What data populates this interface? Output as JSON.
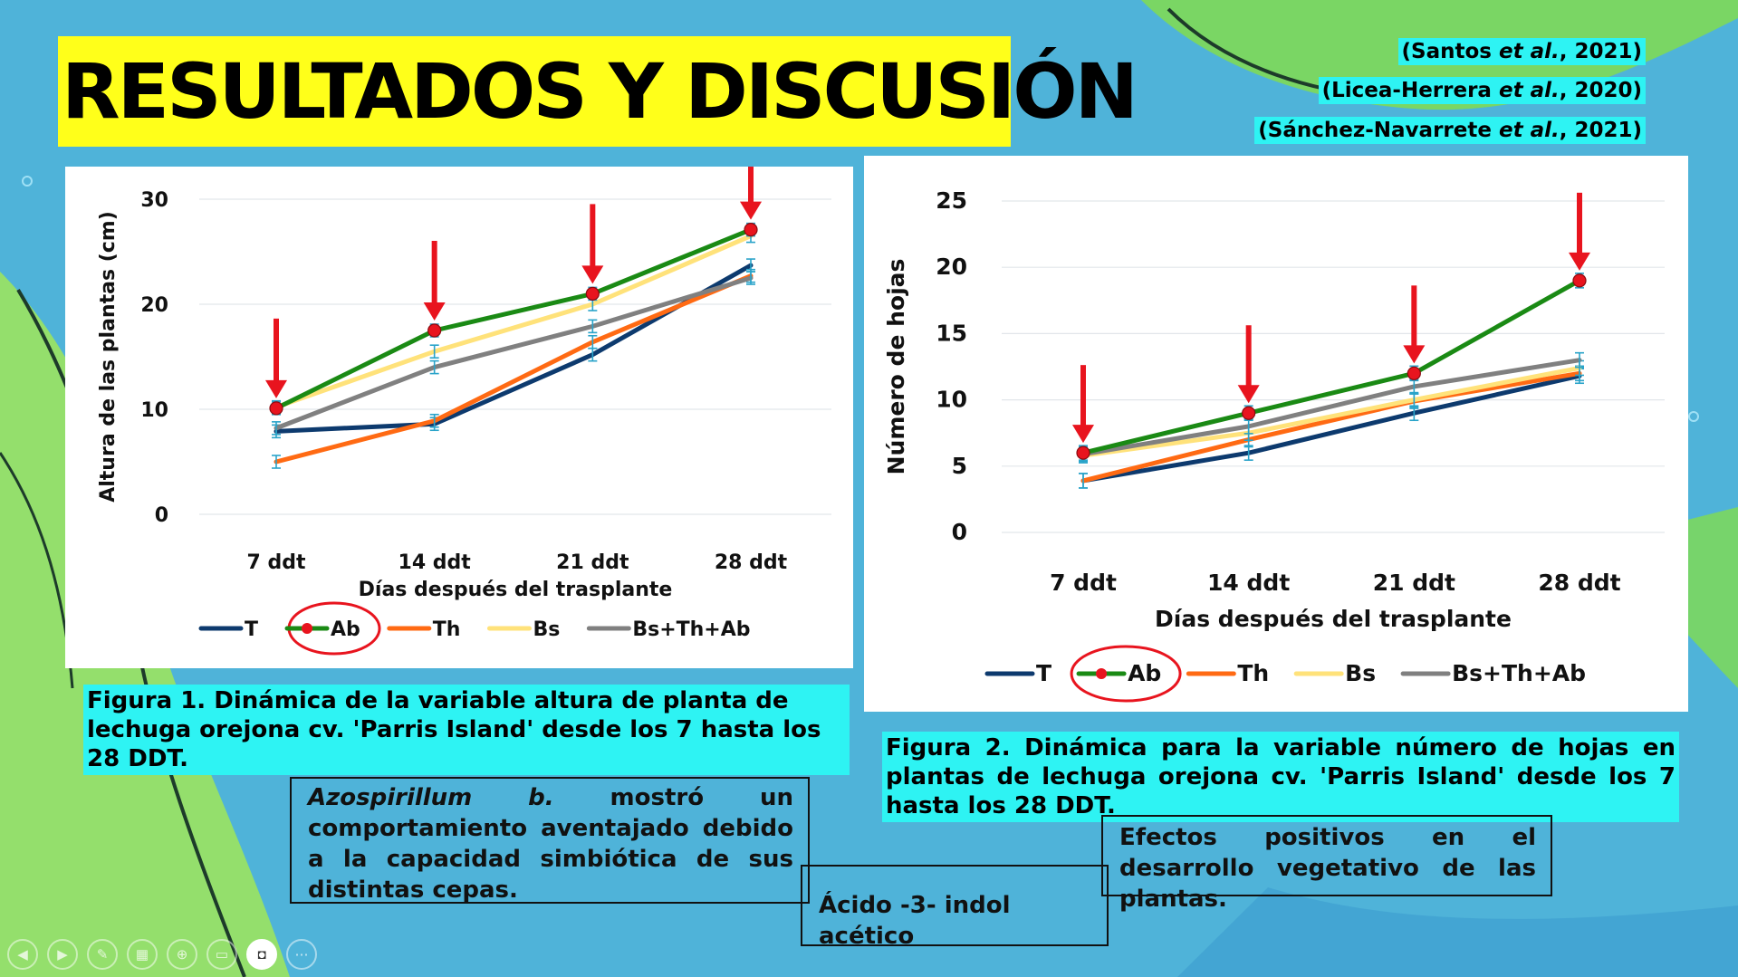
{
  "slide": {
    "title": "RESULTADOS Y DISCUSIÓN",
    "references": [
      {
        "before": "(Santos ",
        "italic": "et al.",
        "after": ", 2021)"
      },
      {
        "before": "(Licea-Herrera ",
        "italic": "et al.",
        "after": ", 2020)"
      },
      {
        "before": "(Sánchez-Navarrete ",
        "italic": "et al.",
        "after": ", 2021)"
      }
    ]
  },
  "chart_data": [
    {
      "type": "line",
      "title": "",
      "xlabel": "Días después del trasplante",
      "ylabel": "Altura de las plantas (cm)",
      "categories": [
        "7 ddt",
        "14 ddt",
        "21 ddt",
        "28 ddt"
      ],
      "ylim": [
        0,
        30
      ],
      "yticks": [
        0,
        10,
        20,
        30
      ],
      "grid": true,
      "legend_position": "bottom",
      "series": [
        {
          "name": "T",
          "color": "#0d3a6e",
          "values": [
            7.9,
            8.6,
            15.2,
            23.7
          ]
        },
        {
          "name": "Ab",
          "color": "#1a8a14",
          "values": [
            10.1,
            17.5,
            21.0,
            27.1
          ],
          "markers": true
        },
        {
          "name": "Th",
          "color": "#ff6a13",
          "values": [
            5.0,
            8.9,
            16.4,
            22.7
          ]
        },
        {
          "name": "Bs",
          "color": "#ffe27a",
          "values": [
            10.2,
            15.5,
            20.0,
            26.5
          ]
        },
        {
          "name": "Bs+Th+Ab",
          "color": "#808080",
          "values": [
            8.2,
            14.0,
            17.9,
            22.5
          ]
        }
      ],
      "highlight_series": "Ab",
      "arrow_color": "#e8141e"
    },
    {
      "type": "line",
      "title": "",
      "xlabel": "Días después del trasplante",
      "ylabel": "Número de hojas",
      "categories": [
        "7 ddt",
        "14 ddt",
        "21 ddt",
        "28 ddt"
      ],
      "ylim": [
        0,
        25
      ],
      "yticks": [
        0,
        5,
        10,
        15,
        20,
        25
      ],
      "grid": true,
      "legend_position": "bottom",
      "series": [
        {
          "name": "T",
          "color": "#0d3a6e",
          "values": [
            3.9,
            6.0,
            9.0,
            11.8
          ]
        },
        {
          "name": "Ab",
          "color": "#1a8a14",
          "values": [
            6.0,
            9.0,
            12.0,
            19.0
          ],
          "markers": true
        },
        {
          "name": "Th",
          "color": "#ff6a13",
          "values": [
            3.9,
            7.0,
            9.9,
            12.0
          ]
        },
        {
          "name": "Bs",
          "color": "#ffe27a",
          "values": [
            5.8,
            7.5,
            10.0,
            12.4
          ]
        },
        {
          "name": "Bs+Th+Ab",
          "color": "#808080",
          "values": [
            5.9,
            8.0,
            11.0,
            13.0
          ]
        }
      ],
      "highlight_series": "Ab",
      "arrow_color": "#e8141e"
    }
  ],
  "captions": {
    "fig1": "Figura 1. Dinámica de la variable altura de planta de lechuga orejona cv. 'Parris Island' desde los 7 hasta los 28 DDT.",
    "fig2": "Figura 2. Dinámica para la variable número de hojas en plantas de lechuga orejona cv. 'Parris Island' desde los 7 hasta los 28 DDT."
  },
  "notes": {
    "azospirillum_italic": "Azospirillum b.",
    "azospirillum_rest": " mostró un comportamiento aventajado debido a la capacidad simbiótica de sus distintas cepas.",
    "acid": "Ácido -3- indol acético",
    "effects": "Efectos positivos en el desarrollo vegetativo de las plantas."
  },
  "toolbar": {
    "icons": [
      "prev-icon",
      "next-icon",
      "pen-icon",
      "slides-icon",
      "zoom-icon",
      "subtitles-icon",
      "camera-icon",
      "more-icon"
    ],
    "glyphs": [
      "◀",
      "▶",
      "✎",
      "▦",
      "⊕",
      "▭",
      "◘",
      "⋯"
    ]
  }
}
